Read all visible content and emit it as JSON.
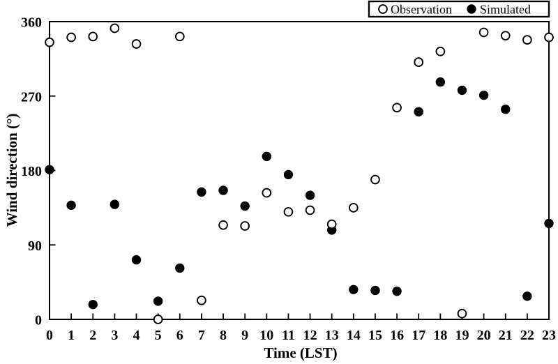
{
  "figure": {
    "background": "#ffffff",
    "ink": "#000000"
  },
  "chart_data": {
    "type": "scatter",
    "title": "",
    "xlabel": "Time (LST)",
    "ylabel": "Wind direction (°)",
    "xlim": [
      0,
      23
    ],
    "ylim": [
      0,
      360
    ],
    "xticks": [
      0,
      1,
      2,
      3,
      4,
      5,
      6,
      7,
      8,
      9,
      10,
      11,
      12,
      13,
      14,
      15,
      16,
      17,
      18,
      19,
      20,
      21,
      22,
      23
    ],
    "yticks": [
      0,
      90,
      180,
      270,
      360
    ],
    "grid": false,
    "legend_position": "top-right",
    "x": [
      0,
      1,
      2,
      3,
      4,
      5,
      6,
      7,
      8,
      9,
      10,
      11,
      12,
      13,
      14,
      15,
      16,
      17,
      18,
      19,
      20,
      21,
      22,
      23
    ],
    "series": [
      {
        "name": "Observation",
        "marker": "open-circle",
        "values": [
          335,
          341,
          342,
          352,
          333,
          0,
          342,
          23,
          114,
          113,
          153,
          130,
          132,
          115,
          135,
          169,
          256,
          311,
          324,
          7,
          347,
          343,
          338,
          341
        ]
      },
      {
        "name": "Simulated",
        "marker": "filled-circle",
        "values": [
          181,
          138,
          18,
          139,
          72,
          22,
          62,
          154,
          156,
          137,
          197,
          175,
          150,
          108,
          36,
          35,
          34,
          251,
          287,
          277,
          271,
          254,
          28,
          116
        ]
      }
    ]
  }
}
